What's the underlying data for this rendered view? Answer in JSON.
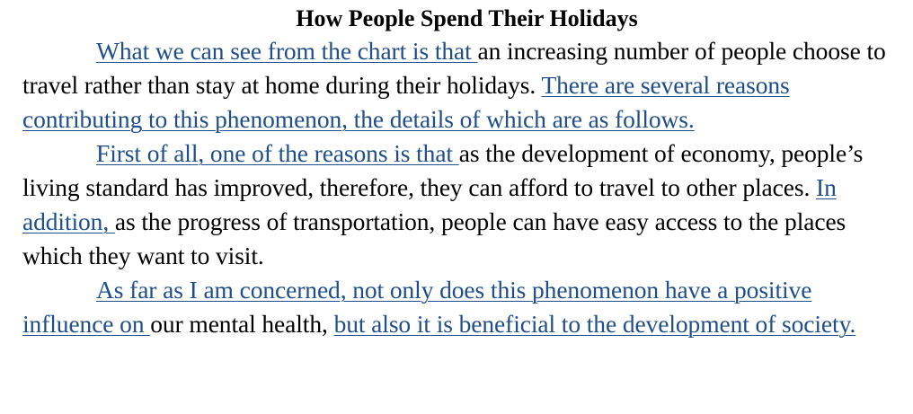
{
  "document": {
    "title": "How People Spend Their Holidays",
    "paragraphs": [
      {
        "segments": [
          {
            "text": "What we can see from the chart is that ",
            "highlight": true
          },
          {
            "text": "an increasing number of people choose to travel rather than stay at home during their holidays. ",
            "highlight": false
          },
          {
            "text": "There are several reasons contributing to this phenomenon, the details of which are as follows.",
            "highlight": true
          }
        ]
      },
      {
        "segments": [
          {
            "text": "First of all, one of the reasons is that ",
            "highlight": true
          },
          {
            "text": "as the development of economy, people’s living standard has improved, therefore, they can afford to travel to other places. ",
            "highlight": false
          },
          {
            "text": "In addition, ",
            "highlight": true
          },
          {
            "text": "as the progress of transportation, people can have easy access to the places which they want to visit.",
            "highlight": false
          }
        ]
      },
      {
        "segments": [
          {
            "text": "As far as I am concerned, not only does this phenomenon have a positive influence on ",
            "highlight": true
          },
          {
            "text": "our mental health, ",
            "highlight": false
          },
          {
            "text": "but also it is beneficial to the development of society.",
            "highlight": true
          }
        ]
      }
    ],
    "colors": {
      "highlight_text": "#1f4e8c",
      "body_text": "#000000",
      "background": "#ffffff"
    }
  }
}
